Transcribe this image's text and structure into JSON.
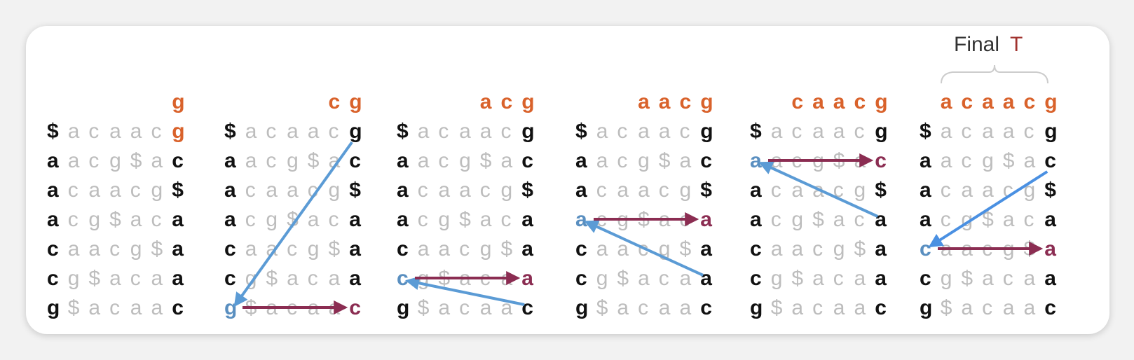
{
  "final_label": {
    "prefix": "Final",
    "letter": "T"
  },
  "colors": {
    "first_col": "#111111",
    "middle": "#bdbdbd",
    "last_col": "#111111",
    "header": "#d9622b",
    "lf_first": "#5a8fc0",
    "lf_last": "#8b2d52",
    "arrow_blue": "#5b9bd5",
    "arrow_blue_light": "#4a90e2",
    "arrow_red": "#8b2d52",
    "final_T": "#a0322e"
  },
  "panels": [
    {
      "header": "g",
      "rows": [
        "$acaacg",
        "aacg$ac",
        "acaacg$",
        "acg$aca",
        "caacg$a",
        "cg$acaa",
        "g$acaac"
      ],
      "last_highlight": 0,
      "first_highlight": null,
      "last_header_highlight": true,
      "arrows": []
    },
    {
      "header": "cg",
      "rows": [
        "$acaacg",
        "aacg$ac",
        "acaacg$",
        "acg$aca",
        "caacg$a",
        "cg$acaa",
        "g$acaac"
      ],
      "last_highlight": 6,
      "first_highlight": 6,
      "arrows": [
        {
          "kind": "blue",
          "from": [
            0,
            6
          ],
          "to": [
            6,
            0
          ]
        },
        {
          "kind": "red",
          "from": [
            6,
            0
          ],
          "to": [
            6,
            6
          ]
        }
      ]
    },
    {
      "header": "acg",
      "rows": [
        "$acaacg",
        "aacg$ac",
        "acaacg$",
        "acg$aca",
        "caacg$a",
        "cg$acaa",
        "g$acaac"
      ],
      "last_highlight": 5,
      "first_highlight": 5,
      "arrows": [
        {
          "kind": "blue",
          "from": [
            6,
            6
          ],
          "to": [
            5,
            0
          ]
        },
        {
          "kind": "red",
          "from": [
            5,
            0
          ],
          "to": [
            5,
            6
          ]
        }
      ]
    },
    {
      "header": "aacg",
      "rows": [
        "$acaacg",
        "aacg$ac",
        "acaacg$",
        "acg$aca",
        "caacg$a",
        "cg$acaa",
        "g$acaac"
      ],
      "last_highlight": 3,
      "first_highlight": 3,
      "arrows": [
        {
          "kind": "blue",
          "from": [
            5,
            6
          ],
          "to": [
            3,
            0
          ]
        },
        {
          "kind": "red",
          "from": [
            3,
            0
          ],
          "to": [
            3,
            6
          ]
        }
      ]
    },
    {
      "header": "caacg",
      "rows": [
        "$acaacg",
        "aacg$ac",
        "acaacg$",
        "acg$aca",
        "caacg$a",
        "cg$acaa",
        "g$acaac"
      ],
      "last_highlight": 1,
      "first_highlight": 1,
      "arrows": [
        {
          "kind": "blue",
          "from": [
            3,
            6
          ],
          "to": [
            1,
            0
          ]
        },
        {
          "kind": "red",
          "from": [
            1,
            0
          ],
          "to": [
            1,
            6
          ]
        }
      ]
    },
    {
      "header": "acaacg",
      "rows": [
        "$acaacg",
        "aacg$ac",
        "acaacg$",
        "acg$aca",
        "caacg$a",
        "cg$acaa",
        "g$acaac"
      ],
      "last_highlight": 4,
      "first_highlight": 4,
      "arrows": [
        {
          "kind": "blue_light",
          "from": [
            1,
            6
          ],
          "to": [
            4,
            0
          ]
        },
        {
          "kind": "red",
          "from": [
            4,
            0
          ],
          "to": [
            4,
            6
          ]
        }
      ]
    }
  ]
}
